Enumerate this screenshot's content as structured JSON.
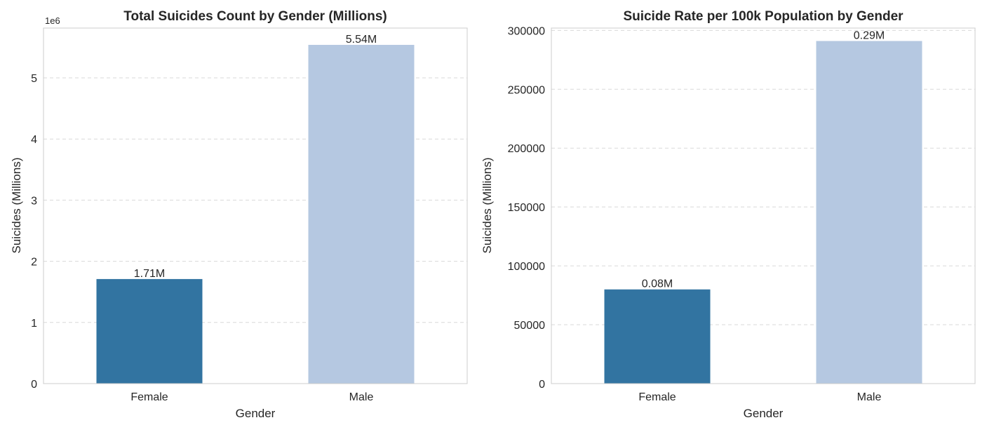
{
  "chart_data": [
    {
      "type": "bar",
      "title": "Total Suicides Count by Gender (Millions)",
      "xlabel": "Gender",
      "ylabel": "Suicides (Millions)",
      "axis_offset_label": "1e6",
      "categories": [
        "Female",
        "Male"
      ],
      "values": [
        1710000,
        5540000
      ],
      "data_labels": [
        "1.71M",
        "5.54M"
      ],
      "colors": [
        "#3274a1",
        "#b5c8e1"
      ],
      "ylim": [
        0,
        5815000
      ],
      "yticks": [
        0,
        1000000,
        2000000,
        3000000,
        4000000,
        5000000
      ],
      "ytick_labels": [
        "0",
        "1",
        "2",
        "3",
        "4",
        "5"
      ],
      "grid": true
    },
    {
      "type": "bar",
      "title": "Suicide Rate per 100k Population by Gender",
      "xlabel": "Gender",
      "ylabel": "Suicides (Millions)",
      "categories": [
        "Female",
        "Male"
      ],
      "values": [
        80000,
        291000
      ],
      "data_labels": [
        "0.08M",
        "0.29M"
      ],
      "colors": [
        "#3274a1",
        "#b5c8e1"
      ],
      "ylim": [
        0,
        302000
      ],
      "yticks": [
        0,
        50000,
        100000,
        150000,
        200000,
        250000,
        300000
      ],
      "ytick_labels": [
        "0",
        "50000",
        "100000",
        "150000",
        "200000",
        "250000",
        "300000"
      ],
      "grid": true
    }
  ]
}
